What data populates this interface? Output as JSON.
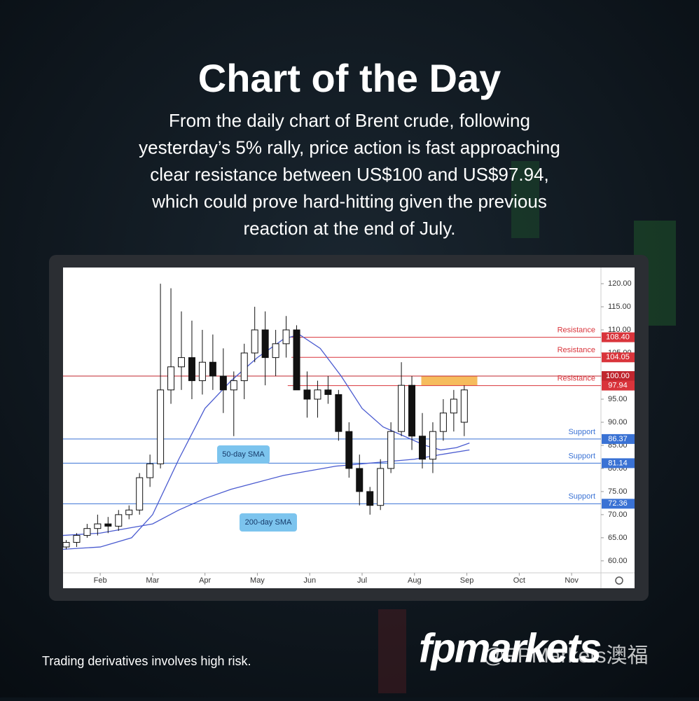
{
  "header": {
    "title": "Chart of the Day",
    "subtitle_lines": [
      "From the daily chart of Brent crude, following",
      "yesterday’s 5% rally, price action is fast approaching",
      "clear resistance between US$100 and US$97.94,",
      "which could prove hard-hitting given the previous",
      "reaction at the end of July."
    ]
  },
  "chart_data": {
    "type": "candlestick",
    "xlim": [
      1.29,
      11.56
    ],
    "ylim": [
      57.4,
      123.5
    ],
    "xticks": [
      {
        "value": 2,
        "label": "Feb"
      },
      {
        "value": 3,
        "label": "Mar"
      },
      {
        "value": 4,
        "label": "Apr"
      },
      {
        "value": 5,
        "label": "May"
      },
      {
        "value": 6,
        "label": "Jun"
      },
      {
        "value": 7,
        "label": "Jul"
      },
      {
        "value": 8,
        "label": "Aug"
      },
      {
        "value": 9,
        "label": "Sep"
      },
      {
        "value": 10,
        "label": "Oct"
      },
      {
        "value": 11,
        "label": "Nov"
      }
    ],
    "yticks": [
      {
        "value": 60,
        "label": "60.00"
      },
      {
        "value": 65,
        "label": "65.00"
      },
      {
        "value": 70,
        "label": "70.00"
      },
      {
        "value": 75,
        "label": "75.00"
      },
      {
        "value": 80,
        "label": "80.00"
      },
      {
        "value": 85,
        "label": "85.00"
      },
      {
        "value": 90,
        "label": "90.00"
      },
      {
        "value": 95,
        "label": "95.00"
      },
      {
        "value": 100,
        "label": "100.00"
      },
      {
        "value": 105,
        "label": "105.00"
      },
      {
        "value": 110,
        "label": "110.00"
      },
      {
        "value": 115,
        "label": "115.00"
      },
      {
        "value": 120,
        "label": "120.00"
      }
    ],
    "candles": {
      "x": [
        1.35,
        1.55,
        1.75,
        1.95,
        2.15,
        2.35,
        2.55,
        2.75,
        2.95,
        3.15,
        3.35,
        3.55,
        3.75,
        3.95,
        4.15,
        4.35,
        4.55,
        4.75,
        4.95,
        5.15,
        5.35,
        5.55,
        5.75,
        5.95,
        6.15,
        6.35,
        6.55,
        6.75,
        6.95,
        7.15,
        7.35,
        7.55,
        7.75,
        7.95,
        8.15,
        8.35,
        8.55,
        8.75,
        8.95
      ],
      "open": [
        63,
        64,
        65.5,
        67,
        68,
        67.5,
        70,
        71,
        78,
        81,
        97,
        102,
        104,
        99,
        103,
        100,
        97,
        99,
        105,
        110,
        104,
        107,
        110,
        97,
        95,
        97,
        96,
        88,
        80,
        75,
        72,
        80,
        88,
        98,
        87,
        82,
        88,
        92,
        90
      ],
      "high": [
        64.5,
        66,
        68,
        70,
        69.5,
        71,
        72,
        79,
        83,
        120,
        119,
        114,
        112,
        110,
        109,
        106,
        101,
        107,
        115,
        114,
        110,
        113,
        111,
        101,
        99,
        100,
        97,
        90,
        83,
        76,
        82,
        90,
        103,
        100,
        92,
        90,
        95,
        97,
        98
      ],
      "low": [
        62.5,
        63,
        65,
        65.5,
        66,
        66.5,
        69,
        70,
        76,
        80,
        94,
        97,
        95,
        96,
        97,
        92,
        87,
        95,
        103,
        98,
        100,
        104,
        97,
        91,
        91,
        94,
        86,
        78,
        72,
        70,
        71,
        79,
        87,
        84,
        80,
        79,
        86,
        88,
        87
      ],
      "close": [
        64,
        65.5,
        67,
        68,
        67.5,
        70,
        71,
        78,
        81,
        97,
        102,
        104,
        99,
        103,
        100,
        97,
        99,
        105,
        110,
        104,
        107,
        110,
        97,
        95,
        97,
        96,
        88,
        80,
        75,
        72,
        80,
        88,
        98,
        87,
        82,
        88,
        92,
        95,
        97
      ]
    },
    "lines": [
      {
        "name": "50-day SMA",
        "color": "#4a5bd0",
        "x": [
          1.29,
          2,
          2.6,
          3,
          3.5,
          4,
          4.5,
          5,
          5.5,
          5.8,
          6.2,
          6.6,
          7,
          7.4,
          7.8,
          8.2,
          8.5,
          8.8,
          9.05
        ],
        "values": [
          62.5,
          63,
          65,
          70,
          82,
          93,
          99,
          104,
          108,
          109,
          106,
          100,
          93,
          89,
          87,
          85,
          84,
          84.5,
          85.5
        ]
      },
      {
        "name": "200-day SMA",
        "color": "#4a5bd0",
        "x": [
          1.29,
          2,
          3,
          3.5,
          4,
          4.5,
          5,
          5.5,
          6,
          6.5,
          7,
          7.5,
          8,
          8.5,
          9.05
        ],
        "values": [
          65.5,
          66,
          68,
          71,
          73.5,
          75.5,
          77,
          78.5,
          79.5,
          80.5,
          81,
          81.5,
          82,
          83,
          84
        ]
      }
    ],
    "levels": [
      {
        "name": "Resistance",
        "value": 108.4,
        "label": "108.40",
        "color": "#d9343b",
        "start": 5.65
      },
      {
        "name": "Resistance",
        "value": 104.05,
        "label": "104.05",
        "color": "#d9343b",
        "start": 5.65
      },
      {
        "value": 100,
        "label": "100.00",
        "color": "#c0262e",
        "start": 1.29
      },
      {
        "name": "Resistance",
        "value": 97.94,
        "label": "97.94",
        "color": "#d9343b",
        "start": 5.58
      },
      {
        "name": "Support",
        "value": 86.37,
        "label": "86.37",
        "color": "#3a72d4",
        "start": 1.29
      },
      {
        "name": "Support",
        "value": 81.14,
        "label": "81.14",
        "color": "#3a72d4",
        "start": 1.29
      },
      {
        "name": "Support",
        "value": 72.36,
        "label": "72.36",
        "color": "#3a72d4",
        "start": 1.29
      }
    ],
    "zone": {
      "from": 97.94,
      "to": 100,
      "x": [
        8.13,
        9.2
      ],
      "color": "#f5b041"
    }
  },
  "footer": {
    "disclaimer": "Trading derivatives involves high risk.",
    "brand": "fpmarkets",
    "watermark": "@FPMarkets澳福"
  }
}
